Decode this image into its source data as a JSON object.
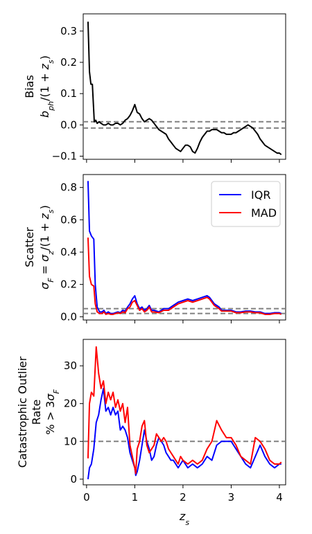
{
  "chart_data": [
    {
      "type": "line",
      "ylabel_line1": "Bias",
      "ylabel_line2": "b_ph/(1 + z_s)",
      "ylim": [
        -0.11,
        0.355
      ],
      "xlim": [
        -0.07,
        4.13
      ],
      "yticks": [
        -0.1,
        0.0,
        0.1,
        0.2,
        0.3
      ],
      "ytick_labels": [
        "−0.1",
        "0.0",
        "0.1",
        "0.2",
        "0.3"
      ],
      "reference_lines": [
        0.01,
        -0.01
      ],
      "grid": false,
      "series": [
        {
          "color": "#000000",
          "x": [
            0.03,
            0.06,
            0.09,
            0.12,
            0.16,
            0.19,
            0.22,
            0.26,
            0.3,
            0.35,
            0.4,
            0.45,
            0.5,
            0.55,
            0.6,
            0.65,
            0.7,
            0.75,
            0.8,
            0.85,
            0.9,
            0.95,
            1.0,
            1.02,
            1.05,
            1.1,
            1.15,
            1.2,
            1.25,
            1.3,
            1.35,
            1.4,
            1.45,
            1.5,
            1.55,
            1.6,
            1.65,
            1.7,
            1.75,
            1.8,
            1.85,
            1.9,
            1.95,
            2.0,
            2.05,
            2.1,
            2.15,
            2.2,
            2.25,
            2.3,
            2.35,
            2.4,
            2.45,
            2.5,
            2.55,
            2.6,
            2.65,
            2.7,
            2.75,
            2.8,
            2.85,
            2.9,
            2.95,
            3.0,
            3.05,
            3.1,
            3.15,
            3.2,
            3.25,
            3.3,
            3.35,
            3.4,
            3.45,
            3.5,
            3.55,
            3.6,
            3.65,
            3.7,
            3.75,
            3.8,
            3.85,
            3.9,
            3.95,
            4.0,
            4.04
          ],
          "y": [
            0.33,
            0.17,
            0.13,
            0.13,
            0.01,
            0.015,
            0.005,
            0.01,
            0.005,
            0.0,
            0.0,
            0.005,
            0.0,
            0.0,
            0.005,
            0.005,
            0.0,
            0.005,
            0.015,
            0.02,
            0.03,
            0.045,
            0.065,
            0.055,
            0.04,
            0.035,
            0.02,
            0.01,
            0.015,
            0.02,
            0.015,
            0.005,
            -0.005,
            -0.015,
            -0.02,
            -0.025,
            -0.03,
            -0.045,
            -0.055,
            -0.065,
            -0.075,
            -0.08,
            -0.085,
            -0.075,
            -0.065,
            -0.065,
            -0.07,
            -0.085,
            -0.09,
            -0.075,
            -0.055,
            -0.04,
            -0.03,
            -0.02,
            -0.02,
            -0.015,
            -0.015,
            -0.015,
            -0.02,
            -0.025,
            -0.025,
            -0.03,
            -0.03,
            -0.03,
            -0.025,
            -0.025,
            -0.02,
            -0.015,
            -0.01,
            -0.005,
            0.0,
            -0.005,
            -0.01,
            -0.02,
            -0.03,
            -0.045,
            -0.055,
            -0.065,
            -0.07,
            -0.075,
            -0.08,
            -0.085,
            -0.09,
            -0.09,
            -0.095
          ]
        }
      ]
    },
    {
      "type": "line",
      "ylabel_line1": "Scatter",
      "ylabel_line2": "σ_F = σ_z/(1 + z_s)",
      "ylim": [
        -0.02,
        0.88
      ],
      "xlim": [
        -0.07,
        4.13
      ],
      "yticks": [
        0.0,
        0.2,
        0.4,
        0.6,
        0.8
      ],
      "ytick_labels": [
        "0.0",
        "0.2",
        "0.4",
        "0.6",
        "0.8"
      ],
      "reference_lines": [
        0.05,
        0.02
      ],
      "legend": {
        "placement": "top-right",
        "entries": [
          "IQR",
          "MAD"
        ]
      },
      "grid": false,
      "series": [
        {
          "name": "IQR",
          "color": "#0000ff",
          "x": [
            0.03,
            0.06,
            0.1,
            0.15,
            0.18,
            0.22,
            0.27,
            0.32,
            0.36,
            0.4,
            0.45,
            0.5,
            0.55,
            0.6,
            0.65,
            0.7,
            0.75,
            0.8,
            0.85,
            0.9,
            0.95,
            1.0,
            1.05,
            1.1,
            1.15,
            1.2,
            1.25,
            1.3,
            1.35,
            1.4,
            1.5,
            1.6,
            1.7,
            1.8,
            1.9,
            2.0,
            2.1,
            2.2,
            2.3,
            2.4,
            2.5,
            2.55,
            2.6,
            2.65,
            2.7,
            2.75,
            2.8,
            2.9,
            3.0,
            3.1,
            3.2,
            3.3,
            3.4,
            3.5,
            3.6,
            3.7,
            3.8,
            3.9,
            4.0,
            4.04
          ],
          "y": [
            0.84,
            0.53,
            0.5,
            0.48,
            0.2,
            0.06,
            0.03,
            0.03,
            0.04,
            0.02,
            0.03,
            0.02,
            0.02,
            0.025,
            0.03,
            0.025,
            0.04,
            0.035,
            0.06,
            0.08,
            0.11,
            0.13,
            0.08,
            0.05,
            0.06,
            0.04,
            0.05,
            0.07,
            0.04,
            0.04,
            0.03,
            0.05,
            0.05,
            0.07,
            0.09,
            0.1,
            0.11,
            0.1,
            0.11,
            0.12,
            0.13,
            0.12,
            0.1,
            0.08,
            0.07,
            0.06,
            0.04,
            0.04,
            0.04,
            0.03,
            0.03,
            0.035,
            0.035,
            0.03,
            0.03,
            0.02,
            0.02,
            0.025,
            0.025,
            0.02
          ]
        },
        {
          "name": "MAD",
          "color": "#ff0000",
          "x": [
            0.03,
            0.06,
            0.1,
            0.15,
            0.18,
            0.22,
            0.27,
            0.32,
            0.36,
            0.4,
            0.45,
            0.5,
            0.55,
            0.6,
            0.65,
            0.7,
            0.75,
            0.8,
            0.85,
            0.9,
            0.95,
            1.0,
            1.05,
            1.1,
            1.15,
            1.2,
            1.25,
            1.3,
            1.35,
            1.4,
            1.5,
            1.6,
            1.7,
            1.8,
            1.9,
            2.0,
            2.1,
            2.2,
            2.3,
            2.4,
            2.5,
            2.55,
            2.6,
            2.65,
            2.7,
            2.75,
            2.8,
            2.9,
            3.0,
            3.1,
            3.2,
            3.3,
            3.4,
            3.5,
            3.6,
            3.7,
            3.8,
            3.9,
            4.0,
            4.04
          ],
          "y": [
            0.49,
            0.25,
            0.2,
            0.19,
            0.08,
            0.03,
            0.02,
            0.02,
            0.03,
            0.015,
            0.02,
            0.015,
            0.015,
            0.02,
            0.025,
            0.02,
            0.03,
            0.025,
            0.05,
            0.06,
            0.09,
            0.1,
            0.07,
            0.04,
            0.05,
            0.03,
            0.04,
            0.06,
            0.03,
            0.03,
            0.025,
            0.04,
            0.04,
            0.06,
            0.08,
            0.09,
            0.1,
            0.09,
            0.1,
            0.11,
            0.12,
            0.11,
            0.09,
            0.07,
            0.06,
            0.05,
            0.035,
            0.035,
            0.035,
            0.025,
            0.025,
            0.03,
            0.03,
            0.025,
            0.025,
            0.015,
            0.015,
            0.02,
            0.02,
            0.015
          ]
        }
      ]
    },
    {
      "type": "line",
      "ylabel_line1": "Catastrophic Outlier",
      "ylabel_line2": "Rate",
      "ylabel_line3": "% > 3σ_F",
      "xlabel": "z_s",
      "ylim": [
        -1.5,
        37
      ],
      "xlim": [
        -0.07,
        4.13
      ],
      "yticks": [
        0,
        10,
        20,
        30
      ],
      "ytick_labels": [
        "0",
        "10",
        "20",
        "30"
      ],
      "xticks": [
        0,
        1,
        2,
        3,
        4
      ],
      "xtick_labels": [
        "0",
        "1",
        "2",
        "3",
        "4"
      ],
      "reference_lines": [
        10
      ],
      "grid": false,
      "series": [
        {
          "name": "IQR",
          "color": "#0000ff",
          "x": [
            0.03,
            0.06,
            0.1,
            0.15,
            0.2,
            0.25,
            0.3,
            0.35,
            0.4,
            0.45,
            0.5,
            0.55,
            0.6,
            0.65,
            0.7,
            0.75,
            0.8,
            0.85,
            0.9,
            0.95,
            1.0,
            1.02,
            1.05,
            1.1,
            1.15,
            1.2,
            1.25,
            1.3,
            1.35,
            1.4,
            1.45,
            1.5,
            1.55,
            1.6,
            1.65,
            1.7,
            1.75,
            1.8,
            1.85,
            1.9,
            1.95,
            2.0,
            2.1,
            2.2,
            2.3,
            2.4,
            2.5,
            2.6,
            2.7,
            2.8,
            2.9,
            3.0,
            3.1,
            3.2,
            3.3,
            3.4,
            3.5,
            3.6,
            3.7,
            3.8,
            3.9,
            4.0,
            4.04
          ],
          "y": [
            0,
            3,
            4,
            8,
            15,
            17,
            21,
            24,
            18,
            19,
            17,
            19,
            17,
            18,
            13,
            14,
            13,
            11,
            7,
            5,
            3,
            1,
            2,
            5,
            9,
            13,
            10,
            8,
            5,
            6,
            9,
            11,
            10,
            9,
            7,
            6,
            5,
            5,
            4,
            3,
            4,
            5,
            3,
            4,
            3,
            4,
            6,
            5,
            9,
            10,
            10,
            10,
            8,
            6,
            4,
            3,
            6,
            9,
            6,
            4,
            3,
            4,
            4
          ]
        },
        {
          "name": "MAD",
          "color": "#ff0000",
          "x": [
            0.03,
            0.06,
            0.1,
            0.15,
            0.2,
            0.25,
            0.3,
            0.35,
            0.4,
            0.45,
            0.5,
            0.55,
            0.6,
            0.65,
            0.7,
            0.75,
            0.8,
            0.85,
            0.9,
            0.95,
            1.0,
            1.02,
            1.05,
            1.1,
            1.15,
            1.2,
            1.25,
            1.3,
            1.35,
            1.4,
            1.45,
            1.5,
            1.55,
            1.6,
            1.65,
            1.7,
            1.75,
            1.8,
            1.85,
            1.9,
            1.95,
            2.0,
            2.1,
            2.2,
            2.3,
            2.4,
            2.5,
            2.6,
            2.7,
            2.8,
            2.9,
            3.0,
            3.1,
            3.2,
            3.3,
            3.4,
            3.5,
            3.6,
            3.7,
            3.8,
            3.9,
            4.0,
            4.04
          ],
          "y": [
            5.5,
            20,
            23,
            22,
            35,
            28,
            24,
            26,
            20,
            23,
            21,
            23,
            19,
            21,
            18,
            20,
            15,
            19,
            9,
            6,
            3,
            1.5,
            8,
            10,
            14,
            15.5,
            9,
            7,
            8,
            9,
            12,
            11,
            10,
            11,
            10,
            8,
            7,
            6,
            5,
            4,
            6,
            5,
            4,
            5,
            4,
            5,
            8,
            10,
            15.5,
            13,
            11,
            11,
            9,
            6,
            5,
            4,
            11,
            10,
            8,
            5,
            4,
            4,
            4.5
          ]
        }
      ]
    }
  ]
}
